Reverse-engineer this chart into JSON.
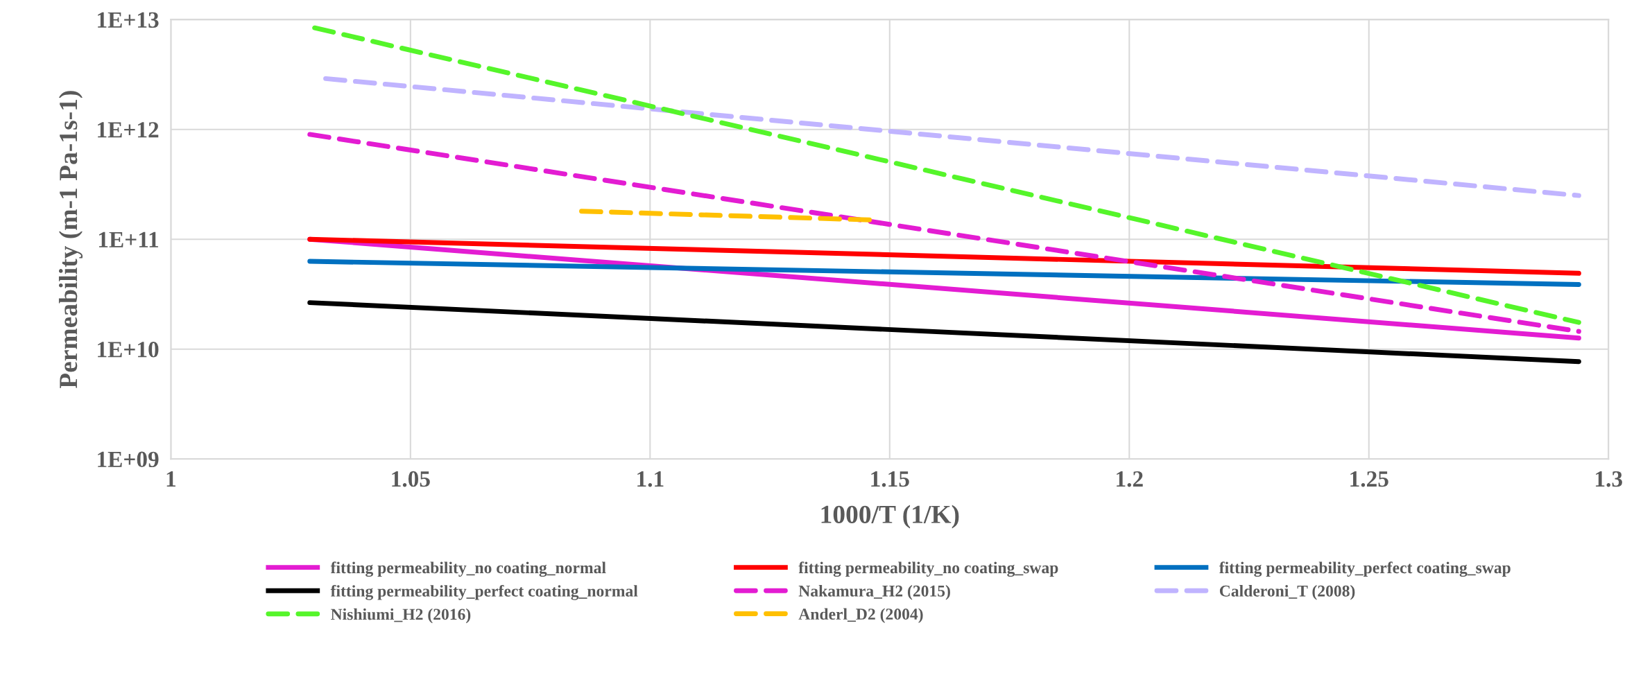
{
  "chart_data": {
    "type": "line",
    "xlabel": "1000/T (1/K)",
    "ylabel": "Permeability (m-1 Pa-1s-1)",
    "log": "y",
    "xlim": [
      1,
      1.3
    ],
    "xticks": [
      1,
      1.05,
      1.1,
      1.15,
      1.2,
      1.25,
      1.3
    ],
    "ylim": [
      1000000000.0,
      10000000000000.0
    ],
    "yticks": [
      {
        "value": 1000000000.0,
        "label": "1E+09"
      },
      {
        "value": 10000000000.0,
        "label": "1E+10"
      },
      {
        "value": 100000000000.0,
        "label": "1E+11"
      },
      {
        "value": 1000000000000.0,
        "label": "1E+12"
      },
      {
        "value": 10000000000000.0,
        "label": "1E+13"
      }
    ],
    "grid": true,
    "legend": "bottom",
    "marker": "none",
    "series": [
      {
        "name": "fitting permeability_no coating_normal",
        "color": "#e31cd2",
        "line_style": "solid",
        "x": [
          1.029,
          1.2938
        ],
        "values": [
          100000000000.0,
          12600000000.0
        ]
      },
      {
        "name": "fitting permeability_no coating_swap",
        "color": "#ff0000",
        "line_style": "solid",
        "x": [
          1.029,
          1.2938
        ],
        "values": [
          100000000000.0,
          49000000000.0
        ]
      },
      {
        "name": "fitting permeability_perfect coating_swap",
        "color": "#0070c0",
        "line_style": "solid",
        "x": [
          1.029,
          1.2938
        ],
        "values": [
          63000000000.0,
          38700000000.0
        ]
      },
      {
        "name": "fitting permeability_perfect coating_normal",
        "color": "#000000",
        "line_style": "solid",
        "x": [
          1.029,
          1.2938
        ],
        "values": [
          26500000000.0,
          7700000000.0
        ]
      },
      {
        "name": "Nakamura_H2 (2015)",
        "color": "#e31cd2",
        "line_style": "dashed",
        "x": [
          1.029,
          1.2938
        ],
        "values": [
          900000000000.0,
          14500000000.0
        ]
      },
      {
        "name": "Calderoni_T (2008)",
        "color": "#c0b4ff",
        "line_style": "dashed",
        "x": [
          1.0323,
          1.2938
        ],
        "values": [
          2900000000000.0,
          250000000000.0
        ]
      },
      {
        "name": "Nishiumi_H2 (2016)",
        "color": "#55f52a",
        "line_style": "dashed",
        "x": [
          1.03,
          1.2938
        ],
        "values": [
          8400000000000.0,
          17500000000.0
        ]
      },
      {
        "name": "Anderl_D2 (2004)",
        "color": "#ffc000",
        "line_style": "dashed",
        "x": [
          1.0857,
          1.146
        ],
        "values": [
          180000000000.0,
          150000000000.0
        ]
      }
    ]
  }
}
